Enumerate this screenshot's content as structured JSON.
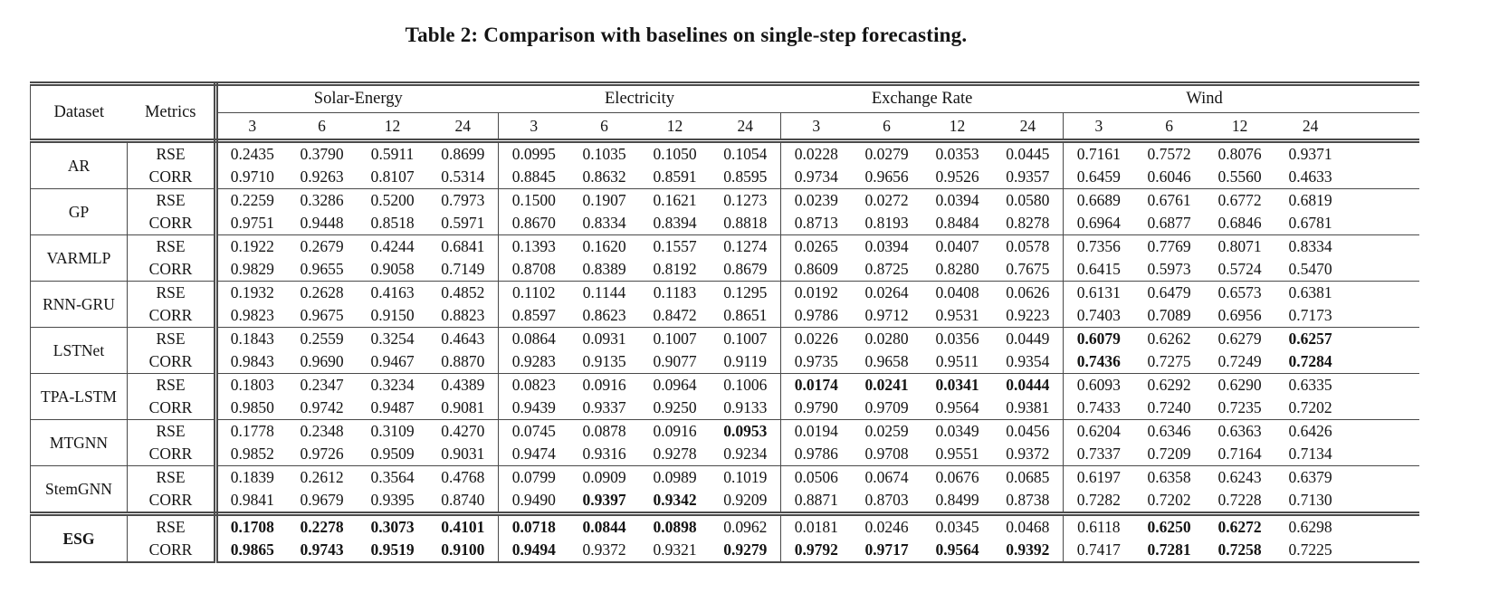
{
  "title": "Table 2: Comparison with baselines on single-step forecasting.",
  "colors": {
    "background": "#ffffff",
    "text": "#141414",
    "rule": "#4a4a4a"
  },
  "table": {
    "header": {
      "dataset": "Dataset",
      "metrics": "Metrics"
    },
    "groups": [
      {
        "label": "Solar-Energy",
        "horizons": [
          "3",
          "6",
          "12",
          "24"
        ]
      },
      {
        "label": "Electricity",
        "horizons": [
          "3",
          "6",
          "12",
          "24"
        ]
      },
      {
        "label": "Exchange Rate",
        "horizons": [
          "3",
          "6",
          "12",
          "24"
        ]
      },
      {
        "label": "Wind",
        "horizons": [
          "3",
          "6",
          "12",
          "24"
        ]
      }
    ],
    "rows": [
      {
        "dataset": "AR",
        "bold_dataset": false,
        "metrics": [
          {
            "name": "RSE",
            "values": [
              "0.2435",
              "0.3790",
              "0.5911",
              "0.8699",
              "0.0995",
              "0.1035",
              "0.1050",
              "0.1054",
              "0.0228",
              "0.0279",
              "0.0353",
              "0.0445",
              "0.7161",
              "0.7572",
              "0.8076",
              "0.9371"
            ]
          },
          {
            "name": "CORR",
            "values": [
              "0.9710",
              "0.9263",
              "0.8107",
              "0.5314",
              "0.8845",
              "0.8632",
              "0.8591",
              "0.8595",
              "0.9734",
              "0.9656",
              "0.9526",
              "0.9357",
              "0.6459",
              "0.6046",
              "0.5560",
              "0.4633"
            ]
          }
        ]
      },
      {
        "dataset": "GP",
        "bold_dataset": false,
        "metrics": [
          {
            "name": "RSE",
            "values": [
              "0.2259",
              "0.3286",
              "0.5200",
              "0.7973",
              "0.1500",
              "0.1907",
              "0.1621",
              "0.1273",
              "0.0239",
              "0.0272",
              "0.0394",
              "0.0580",
              "0.6689",
              "0.6761",
              "0.6772",
              "0.6819"
            ]
          },
          {
            "name": "CORR",
            "values": [
              "0.9751",
              "0.9448",
              "0.8518",
              "0.5971",
              "0.8670",
              "0.8334",
              "0.8394",
              "0.8818",
              "0.8713",
              "0.8193",
              "0.8484",
              "0.8278",
              "0.6964",
              "0.6877",
              "0.6846",
              "0.6781"
            ]
          }
        ]
      },
      {
        "dataset": "VARMLP",
        "bold_dataset": false,
        "metrics": [
          {
            "name": "RSE",
            "values": [
              "0.1922",
              "0.2679",
              "0.4244",
              "0.6841",
              "0.1393",
              "0.1620",
              "0.1557",
              "0.1274",
              "0.0265",
              "0.0394",
              "0.0407",
              "0.0578",
              "0.7356",
              "0.7769",
              "0.8071",
              "0.8334"
            ]
          },
          {
            "name": "CORR",
            "values": [
              "0.9829",
              "0.9655",
              "0.9058",
              "0.7149",
              "0.8708",
              "0.8389",
              "0.8192",
              "0.8679",
              "0.8609",
              "0.8725",
              "0.8280",
              "0.7675",
              "0.6415",
              "0.5973",
              "0.5724",
              "0.5470"
            ]
          }
        ]
      },
      {
        "dataset": "RNN-GRU",
        "bold_dataset": false,
        "metrics": [
          {
            "name": "RSE",
            "values": [
              "0.1932",
              "0.2628",
              "0.4163",
              "0.4852",
              "0.1102",
              "0.1144",
              "0.1183",
              "0.1295",
              "0.0192",
              "0.0264",
              "0.0408",
              "0.0626",
              "0.6131",
              "0.6479",
              "0.6573",
              "0.6381"
            ]
          },
          {
            "name": "CORR",
            "values": [
              "0.9823",
              "0.9675",
              "0.9150",
              "0.8823",
              "0.8597",
              "0.8623",
              "0.8472",
              "0.8651",
              "0.9786",
              "0.9712",
              "0.9531",
              "0.9223",
              "0.7403",
              "0.7089",
              "0.6956",
              "0.7173"
            ]
          }
        ]
      },
      {
        "dataset": "LSTNet",
        "bold_dataset": false,
        "metrics": [
          {
            "name": "RSE",
            "values": [
              "0.1843",
              "0.2559",
              "0.3254",
              "0.4643",
              "0.0864",
              "0.0931",
              "0.1007",
              "0.1007",
              "0.0226",
              "0.0280",
              "0.0356",
              "0.0449",
              "0.6079",
              "0.6262",
              "0.6279",
              "0.6257"
            ],
            "bold": [
              0,
              0,
              0,
              0,
              0,
              0,
              0,
              0,
              0,
              0,
              0,
              0,
              1,
              0,
              0,
              1
            ]
          },
          {
            "name": "CORR",
            "values": [
              "0.9843",
              "0.9690",
              "0.9467",
              "0.8870",
              "0.9283",
              "0.9135",
              "0.9077",
              "0.9119",
              "0.9735",
              "0.9658",
              "0.9511",
              "0.9354",
              "0.7436",
              "0.7275",
              "0.7249",
              "0.7284"
            ],
            "bold": [
              0,
              0,
              0,
              0,
              0,
              0,
              0,
              0,
              0,
              0,
              0,
              0,
              1,
              0,
              0,
              1
            ]
          }
        ]
      },
      {
        "dataset": "TPA-LSTM",
        "bold_dataset": false,
        "metrics": [
          {
            "name": "RSE",
            "values": [
              "0.1803",
              "0.2347",
              "0.3234",
              "0.4389",
              "0.0823",
              "0.0916",
              "0.0964",
              "0.1006",
              "0.0174",
              "0.0241",
              "0.0341",
              "0.0444",
              "0.6093",
              "0.6292",
              "0.6290",
              "0.6335"
            ],
            "bold": [
              0,
              0,
              0,
              0,
              0,
              0,
              0,
              0,
              1,
              1,
              1,
              1,
              0,
              0,
              0,
              0
            ]
          },
          {
            "name": "CORR",
            "values": [
              "0.9850",
              "0.9742",
              "0.9487",
              "0.9081",
              "0.9439",
              "0.9337",
              "0.9250",
              "0.9133",
              "0.9790",
              "0.9709",
              "0.9564",
              "0.9381",
              "0.7433",
              "0.7240",
              "0.7235",
              "0.7202"
            ]
          }
        ]
      },
      {
        "dataset": "MTGNN",
        "bold_dataset": false,
        "metrics": [
          {
            "name": "RSE",
            "values": [
              "0.1778",
              "0.2348",
              "0.3109",
              "0.4270",
              "0.0745",
              "0.0878",
              "0.0916",
              "0.0953",
              "0.0194",
              "0.0259",
              "0.0349",
              "0.0456",
              "0.6204",
              "0.6346",
              "0.6363",
              "0.6426"
            ],
            "bold": [
              0,
              0,
              0,
              0,
              0,
              0,
              0,
              1,
              0,
              0,
              0,
              0,
              0,
              0,
              0,
              0
            ]
          },
          {
            "name": "CORR",
            "values": [
              "0.9852",
              "0.9726",
              "0.9509",
              "0.9031",
              "0.9474",
              "0.9316",
              "0.9278",
              "0.9234",
              "0.9786",
              "0.9708",
              "0.9551",
              "0.9372",
              "0.7337",
              "0.7209",
              "0.7164",
              "0.7134"
            ]
          }
        ]
      },
      {
        "dataset": "StemGNN",
        "bold_dataset": false,
        "metrics": [
          {
            "name": "RSE",
            "values": [
              "0.1839",
              "0.2612",
              "0.3564",
              "0.4768",
              "0.0799",
              "0.0909",
              "0.0989",
              "0.1019",
              "0.0506",
              "0.0674",
              "0.0676",
              "0.0685",
              "0.6197",
              "0.6358",
              "0.6243",
              "0.6379"
            ]
          },
          {
            "name": "CORR",
            "values": [
              "0.9841",
              "0.9679",
              "0.9395",
              "0.8740",
              "0.9490",
              "0.9397",
              "0.9342",
              "0.9209",
              "0.8871",
              "0.8703",
              "0.8499",
              "0.8738",
              "0.7282",
              "0.7202",
              "0.7228",
              "0.7130"
            ],
            "bold": [
              0,
              0,
              0,
              0,
              0,
              1,
              1,
              0,
              0,
              0,
              0,
              0,
              0,
              0,
              0,
              0
            ]
          }
        ]
      },
      {
        "dataset": "ESG",
        "bold_dataset": true,
        "metrics": [
          {
            "name": "RSE",
            "values": [
              "0.1708",
              "0.2278",
              "0.3073",
              "0.4101",
              "0.0718",
              "0.0844",
              "0.0898",
              "0.0962",
              "0.0181",
              "0.0246",
              "0.0345",
              "0.0468",
              "0.6118",
              "0.6250",
              "0.6272",
              "0.6298"
            ],
            "bold": [
              1,
              1,
              1,
              1,
              1,
              1,
              1,
              0,
              0,
              0,
              0,
              0,
              0,
              1,
              1,
              0
            ]
          },
          {
            "name": "CORR",
            "values": [
              "0.9865",
              "0.9743",
              "0.9519",
              "0.9100",
              "0.9494",
              "0.9372",
              "0.9321",
              "0.9279",
              "0.9792",
              "0.9717",
              "0.9564",
              "0.9392",
              "0.7417",
              "0.7281",
              "0.7258",
              "0.7225"
            ],
            "bold": [
              1,
              1,
              1,
              1,
              1,
              0,
              0,
              1,
              1,
              1,
              1,
              1,
              0,
              1,
              1,
              0
            ]
          }
        ]
      }
    ]
  }
}
